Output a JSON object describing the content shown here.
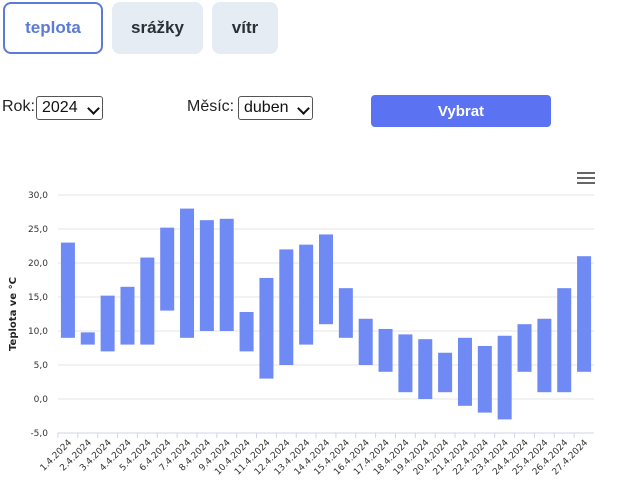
{
  "tabs": [
    {
      "label": "teplota",
      "active": true
    },
    {
      "label": "srážky",
      "active": false
    },
    {
      "label": "vítr",
      "active": false
    }
  ],
  "form": {
    "year_label": "Rok:",
    "year_value": "2024",
    "month_label": "Měsíc:",
    "month_value": "duben",
    "submit_label": "Vybrat"
  },
  "menu_icon": "hamburger-menu-icon",
  "colors": {
    "accent": "#5b7bd6",
    "bar": "#6f89f5",
    "button": "#5b72f2"
  },
  "chart_data": {
    "type": "bar",
    "variant": "range",
    "ylabel": "Teplota ve °C",
    "ylim": [
      -5,
      30
    ],
    "yticks": [
      "30,0",
      "25,0",
      "20,0",
      "15,0",
      "10,0",
      "5,0",
      "0,0",
      "-5,0"
    ],
    "grid": true,
    "categories": [
      "1.4.2024",
      "2.4.2024",
      "3.4.2024",
      "4.4.2024",
      "5.4.2024",
      "6.4.2024",
      "7.4.2024",
      "8.4.2024",
      "9.4.2024",
      "10.4.2024",
      "11.4.2024",
      "12.4.2024",
      "13.4.2024",
      "14.4.2024",
      "15.4.2024",
      "16.4.2024",
      "17.4.2024",
      "18.4.2024",
      "19.4.2024",
      "20.4.2024",
      "21.4.2024",
      "22.4.2024",
      "23.4.2024",
      "24.4.2024",
      "25.4.2024",
      "26.4.2024",
      "27.4.2024"
    ],
    "series": [
      {
        "low": [
          9,
          8,
          7,
          8,
          8,
          13,
          9,
          10,
          10,
          7,
          3,
          5,
          8,
          11,
          9,
          5,
          4,
          1,
          0,
          1,
          -1,
          -2,
          -3,
          4,
          1,
          1,
          4
        ],
        "high": [
          23,
          9.8,
          15.2,
          16.5,
          20.8,
          25.2,
          28,
          26.3,
          26.5,
          12.8,
          17.8,
          22,
          22.7,
          24.2,
          16.3,
          11.8,
          10.3,
          9.5,
          8.8,
          6.8,
          9,
          7.8,
          9.3,
          11,
          11.8,
          16.3,
          21
        ]
      }
    ]
  }
}
